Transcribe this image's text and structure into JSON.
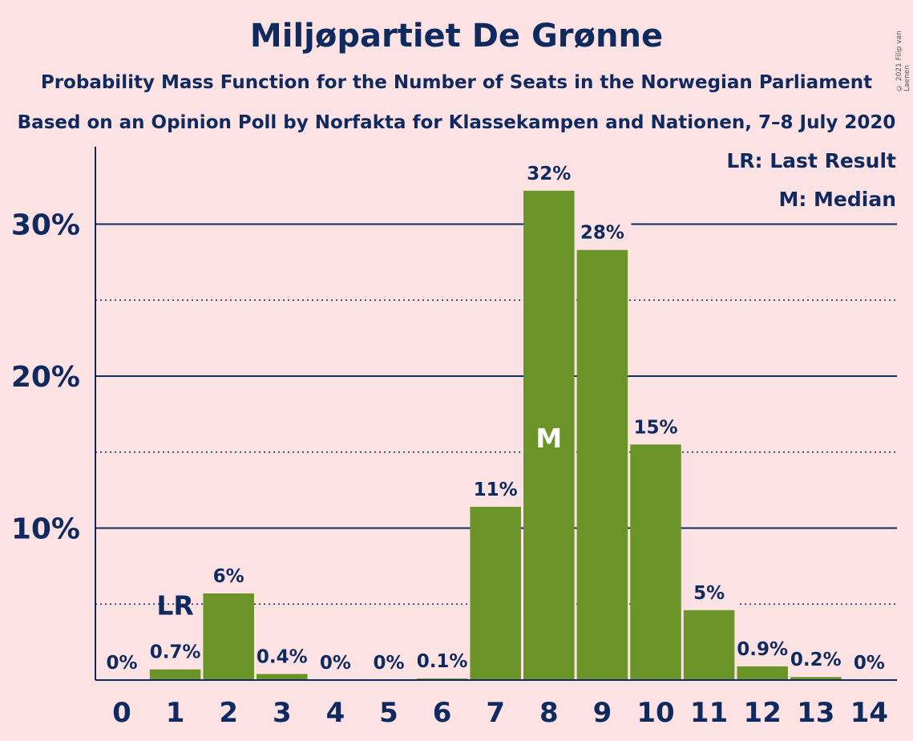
{
  "title": "Miljøpartiet De Grønne",
  "subtitle_1": "Probability Mass Function for the Number of Seats in the Norwegian Parliament",
  "subtitle_2": "Based on an Opinion Poll by Norfakta for Klassekampen and Nationen, 7–8 July 2020",
  "copyright": "© 2021 Filip van Laenen",
  "legend": {
    "last_result": "LR: Last Result",
    "median": "M: Median"
  },
  "colors": {
    "bar": "#6a9427",
    "background": "#fde2e4",
    "text": "#0f2a5f"
  },
  "chart_data": {
    "type": "bar",
    "title": "Miljøpartiet De Grønne",
    "xlabel": "",
    "ylabel": "",
    "categories": [
      "0",
      "1",
      "2",
      "3",
      "4",
      "5",
      "6",
      "7",
      "8",
      "9",
      "10",
      "11",
      "12",
      "13",
      "14"
    ],
    "values": [
      0,
      0.7,
      5.7,
      0.4,
      0,
      0,
      0.1,
      11.4,
      32.2,
      28.3,
      15.5,
      4.6,
      0.9,
      0.2,
      0
    ],
    "data_labels": [
      "0%",
      "0.7%",
      "6%",
      "0.4%",
      "0%",
      "0%",
      "0.1%",
      "11%",
      "32%",
      "28%",
      "15%",
      "5%",
      "0.9%",
      "0.2%",
      "0%"
    ],
    "ylim": [
      0,
      35
    ],
    "yticks": [
      10,
      20,
      30
    ],
    "ytick_labels": [
      "10%",
      "20%",
      "30%"
    ],
    "minor_gridlines": [
      5,
      15,
      25
    ],
    "last_result_seat": 1,
    "last_result_label": "LR",
    "median_seat": 8,
    "median_label": "M",
    "legend_position": "top-right"
  }
}
